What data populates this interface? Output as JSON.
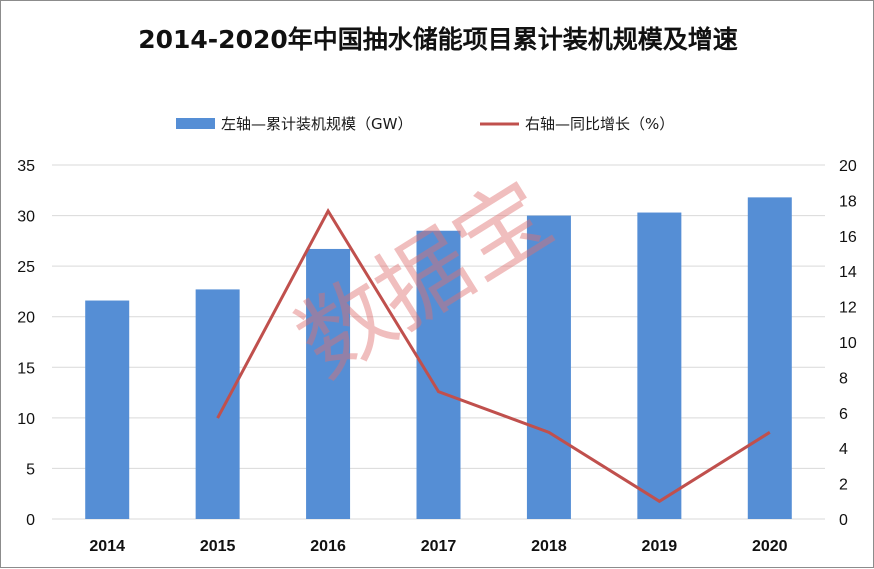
{
  "colors": {
    "bar": "#558ed5",
    "line": "#c0504d",
    "grid": "#d9d9d9",
    "watermark": "#e07070"
  },
  "watermark": "数据宝",
  "chart_data": {
    "type": "bar",
    "title": "2014-2020年中国抽水储能项目累计装机规模及增速",
    "categories": [
      "2014",
      "2015",
      "2016",
      "2017",
      "2018",
      "2019",
      "2020"
    ],
    "series": [
      {
        "name": "左轴—累计装机规模（GW）",
        "type": "bar",
        "axis": "left",
        "values": [
          21.6,
          22.7,
          26.7,
          28.5,
          30.0,
          30.3,
          31.8
        ]
      },
      {
        "name": "右轴—同比增长（%）",
        "type": "line",
        "axis": "right",
        "values": [
          null,
          5.7,
          17.4,
          7.2,
          4.9,
          1.0,
          4.9
        ]
      }
    ],
    "y_left": {
      "min": 0,
      "max": 35,
      "step": 5,
      "ticks": [
        "0",
        "5",
        "10",
        "15",
        "20",
        "25",
        "30",
        "35"
      ]
    },
    "y_right": {
      "min": 0,
      "max": 20,
      "step": 2,
      "ticks": [
        "0",
        "2",
        "4",
        "6",
        "8",
        "10",
        "12",
        "14",
        "16",
        "18",
        "20"
      ]
    },
    "legend_position": "top-center",
    "grid": true
  }
}
